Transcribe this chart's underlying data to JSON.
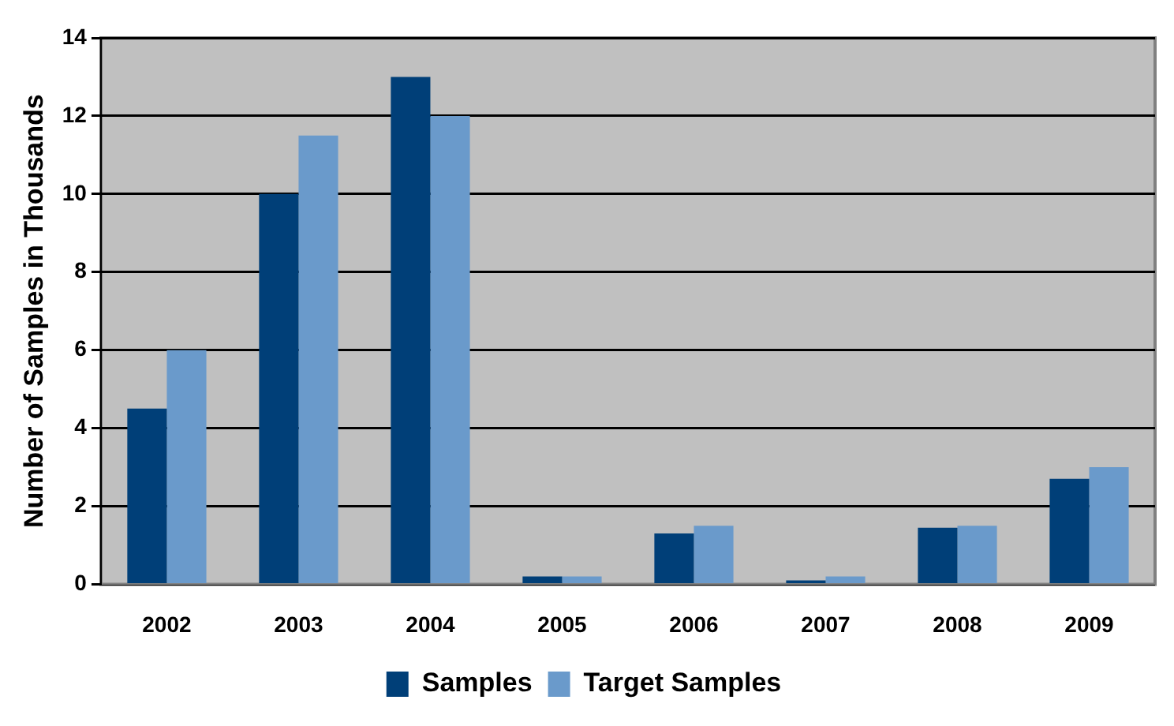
{
  "chart_data": {
    "type": "bar",
    "ylabel": "Number of Samples in Thousands",
    "categories": [
      "2002",
      "2003",
      "2004",
      "2005",
      "2006",
      "2007",
      "2008",
      "2009"
    ],
    "series": [
      {
        "name": "Samples",
        "color": "#003f78",
        "values": [
          4.5,
          10,
          13,
          0.2,
          1.3,
          0.1,
          1.45,
          2.7
        ]
      },
      {
        "name": "Target Samples",
        "color": "#6a9acb",
        "values": [
          6,
          11.5,
          12,
          0.2,
          1.5,
          0.2,
          1.5,
          3
        ]
      }
    ],
    "ylim": [
      0,
      14
    ],
    "yticks": [
      0,
      2,
      4,
      6,
      8,
      10,
      12,
      14
    ],
    "grid": "y",
    "legend": "bottom"
  }
}
